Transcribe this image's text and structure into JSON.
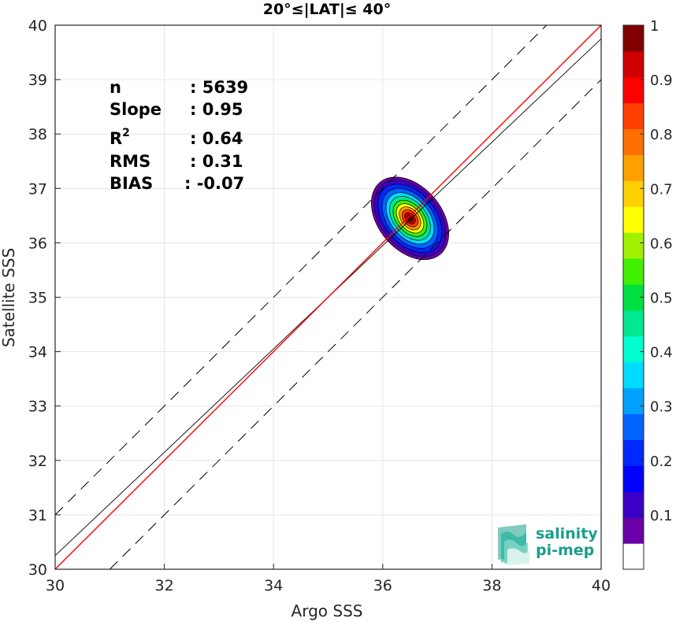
{
  "chart_data": {
    "type": "scatter",
    "title": "20°≤|LAT|≤ 40°",
    "xlabel": "Argo SSS",
    "ylabel": "Satellite SSS",
    "xlim": [
      30,
      40
    ],
    "ylim": [
      30,
      40
    ],
    "xticks": [
      "30",
      "32",
      "34",
      "36",
      "38",
      "40"
    ],
    "yticks": [
      "30",
      "31",
      "32",
      "33",
      "34",
      "35",
      "36",
      "37",
      "38",
      "39",
      "40"
    ],
    "grid": true,
    "stats": [
      {
        "label": "n",
        "sep": ": ",
        "value": "5639"
      },
      {
        "label": "Slope",
        "sep": ": ",
        "value": "0.95"
      },
      {
        "label": "R",
        "sup": "2",
        "sep": ": ",
        "value": "0.64"
      },
      {
        "label": "RMS",
        "sep": ": ",
        "value": "0.31"
      },
      {
        "label": "BIAS",
        "sep": ": ",
        "value": "-0.07"
      }
    ],
    "reference_lines": {
      "one_to_one": {
        "slope": 1,
        "intercept": 0,
        "color": "#ff0000"
      },
      "regression": {
        "slope": 0.95,
        "intercept": 1.75,
        "color": "#000000"
      },
      "bounds": {
        "offset": 1.0,
        "style": "dashed",
        "color": "#000000"
      }
    },
    "density_center": {
      "x": 36.5,
      "y": 36.45
    },
    "colorbar": {
      "min": 0,
      "max": 1,
      "tick_labels": [
        "0.1",
        "0.2",
        "0.3",
        "0.4",
        "0.5",
        "0.6",
        "0.7",
        "0.8",
        "0.9",
        "1"
      ],
      "colors": [
        "#ffffff",
        "#6a00a8",
        "#3a00c8",
        "#0000ff",
        "#0028ff",
        "#0064ff",
        "#00a0ff",
        "#00dcff",
        "#00ffd0",
        "#00e890",
        "#00e040",
        "#40f000",
        "#a0f000",
        "#ffff00",
        "#ffd000",
        "#ffa000",
        "#ff7000",
        "#ff4000",
        "#ff0000",
        "#d00000",
        "#800000"
      ]
    }
  },
  "logo": {
    "line1": "salinity",
    "line2": "pi-mep"
  }
}
